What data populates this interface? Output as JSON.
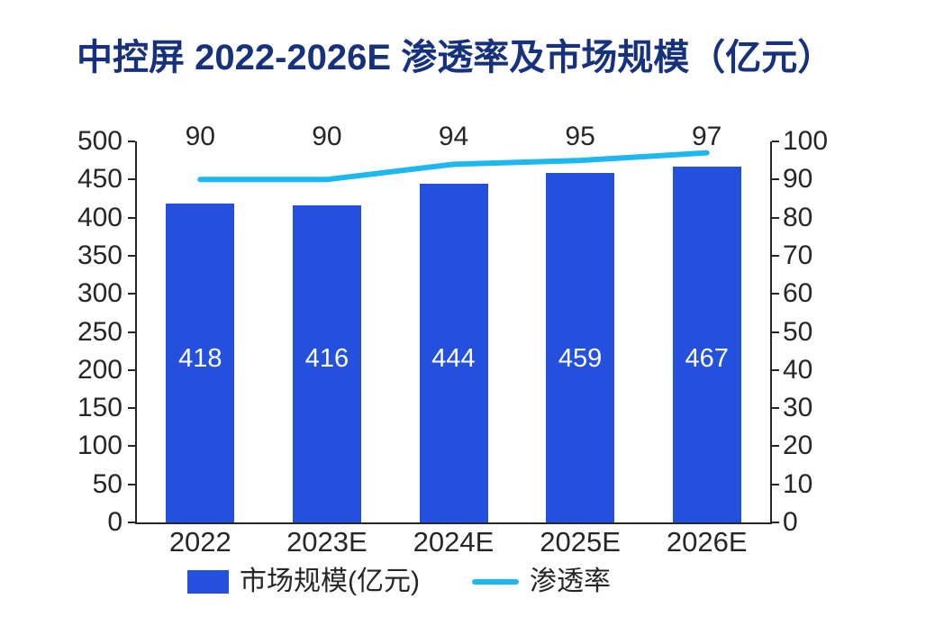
{
  "page": {
    "background": "#ffffff"
  },
  "chart_data": {
    "type": "bar+line",
    "title": "中控屏 2022-2026E 渗透率及市场规模（亿元）",
    "title_color": "#17327d",
    "categories": [
      "2022",
      "2023E",
      "2024E",
      "2025E",
      "2026E"
    ],
    "series": [
      {
        "name": "市场规模(亿元)",
        "type": "bar",
        "axis": "left",
        "values": [
          418,
          416,
          444,
          459,
          467
        ],
        "color": "#2350dc",
        "value_label_color": "#ffffff"
      },
      {
        "name": "渗透率",
        "type": "line",
        "axis": "right",
        "values": [
          90,
          90,
          94,
          95,
          97
        ],
        "color": "#1eb8f0",
        "value_label_color": "#262626"
      }
    ],
    "left_axis": {
      "min": 0,
      "max": 500,
      "step": 50,
      "ticks": [
        "0",
        "50",
        "100",
        "150",
        "200",
        "250",
        "300",
        "350",
        "400",
        "450",
        "500"
      ]
    },
    "right_axis": {
      "min": 0,
      "max": 100,
      "step": 10,
      "ticks": [
        "0",
        "10",
        "20",
        "30",
        "40",
        "50",
        "60",
        "70",
        "80",
        "90",
        "100"
      ]
    },
    "axis_text_color": "#262626",
    "axis_line_color": "#262626",
    "grid": false,
    "legend_position": "bottom",
    "legend": [
      {
        "label": "市场规模(亿元)",
        "swatch": "bar"
      },
      {
        "label": "渗透率",
        "swatch": "line"
      }
    ]
  }
}
